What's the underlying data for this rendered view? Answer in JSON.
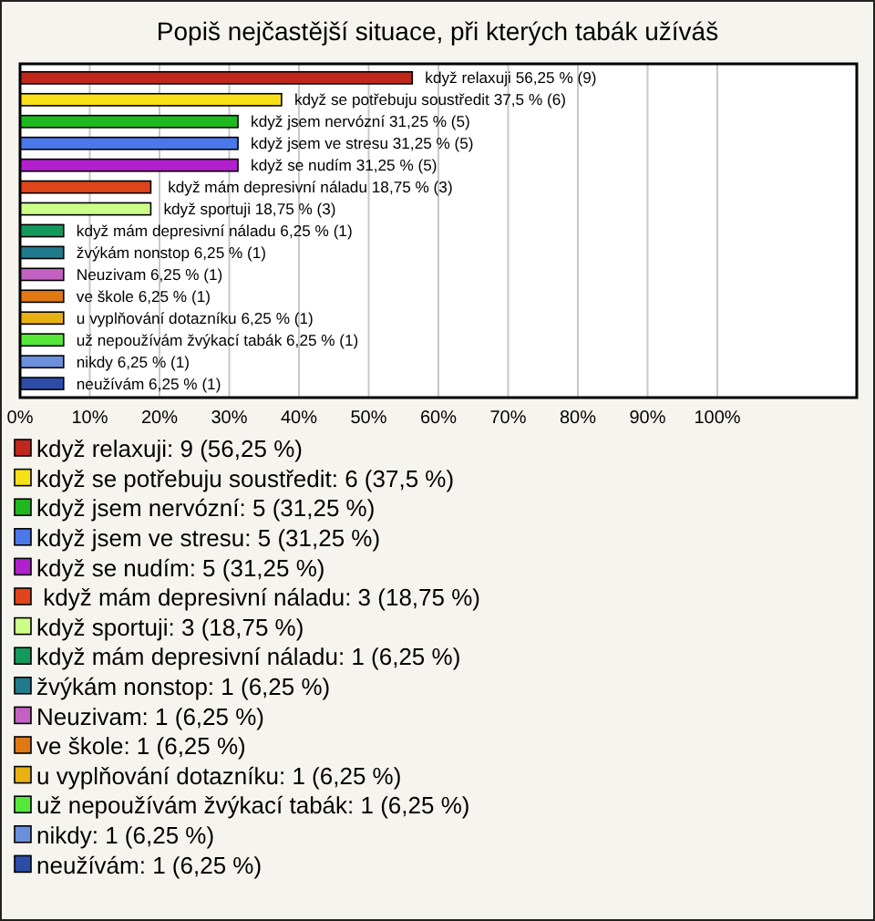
{
  "chart_data": {
    "type": "bar",
    "orientation": "horizontal",
    "title": "Popiš nejčastější situace, při kterých tabák užíváš",
    "categories": [
      "když relaxuji",
      "když se potřebuju soustředit",
      "když jsem nervózní",
      "když jsem ve stresu",
      "když se nudím",
      " když mám depresivní náladu",
      "když sportuji",
      "když mám depresivní náladu",
      "žvýkám nonstop",
      "Neuzivam",
      "ve škole",
      "u vyplňování dotazníku",
      "už nepoužívám žvýkací tabák",
      "nikdy",
      "neužívám"
    ],
    "values": [
      56.25,
      37.5,
      31.25,
      31.25,
      31.25,
      18.75,
      18.75,
      6.25,
      6.25,
      6.25,
      6.25,
      6.25,
      6.25,
      6.25,
      6.25
    ],
    "value_labels": [
      "56,25 % (9)",
      "37,5 % (6)",
      "31,25 % (5)",
      "31,25 % (5)",
      "31,25 % (5)",
      "18,75 % (3)",
      "18,75 % (3)",
      "6,25 % (1)",
      "6,25 % (1)",
      "6,25 % (1)",
      "6,25 % (1)",
      "6,25 % (1)",
      "6,25 % (1)",
      "6,25 % (1)",
      "6,25 % (1)"
    ],
    "colors": [
      "#c0281c",
      "#f7e018",
      "#1fb81f",
      "#4a78e8",
      "#b21fcc",
      "#e0441a",
      "#ccff88",
      "#139a5c",
      "#1f7a8c",
      "#c462c4",
      "#e07814",
      "#e8b010",
      "#55e838",
      "#6a90dc",
      "#2c4ca8"
    ],
    "xlim": [
      0,
      120
    ],
    "xticks": [
      {
        "value": 0,
        "label": "0%"
      },
      {
        "value": 10,
        "label": "10%"
      },
      {
        "value": 20,
        "label": "20%"
      },
      {
        "value": 30,
        "label": "30%"
      },
      {
        "value": 40,
        "label": "40%"
      },
      {
        "value": 50,
        "label": "50%"
      },
      {
        "value": 60,
        "label": "60%"
      },
      {
        "value": 70,
        "label": "70%"
      },
      {
        "value": 80,
        "label": "80%"
      },
      {
        "value": 90,
        "label": "90%"
      },
      {
        "value": 100,
        "label": "100%"
      }
    ],
    "grid": "x",
    "annotations": [
      "když relaxuji: 9 (56,25 %)",
      "když se potřebuju soustředit: 6 (37,5 %)",
      "když jsem nervózní: 5 (31,25 %)",
      "když jsem ve stresu: 5 (31,25 %)",
      "když se nudím: 5 (31,25 %)",
      " když mám depresivní náladu: 3 (18,75 %)",
      "když sportuji: 3 (18,75 %)",
      "když mám depresivní náladu: 1 (6,25 %)",
      "žvýkám nonstop: 1 (6,25 %)",
      "Neuzivam: 1 (6,25 %)",
      "ve škole: 1 (6,25 %)",
      "u vyplňování dotazníku: 1 (6,25 %)",
      "už nepoužívám žvýkací tabák: 1 (6,25 %)",
      "nikdy: 1 (6,25 %)",
      "neužívám: 1 (6,25 %)"
    ]
  }
}
